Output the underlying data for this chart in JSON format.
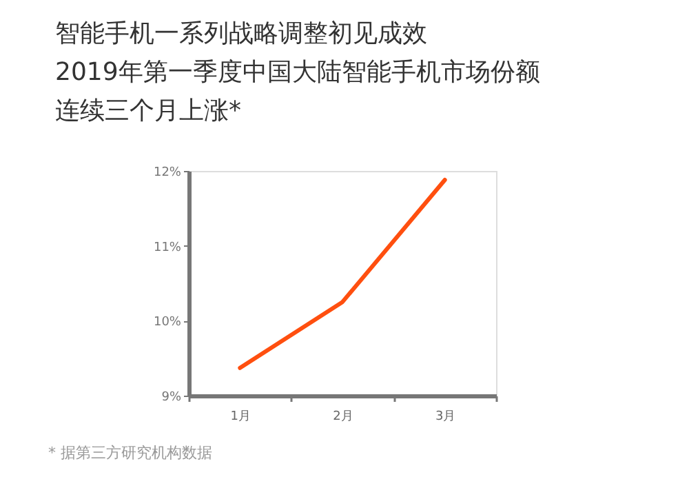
{
  "chart_data": {
    "type": "line",
    "title": "智能手机一系列战略调整初见成效",
    "subtitle": "2019年第一季度中国大陆智能手机市场份额连续三个月上涨*",
    "categories": [
      "1月",
      "2月",
      "3月"
    ],
    "series": [
      {
        "color": "#ff4f0f",
        "values": [
          9.37,
          10.25,
          11.88
        ]
      }
    ],
    "ylim": [
      9,
      12
    ],
    "yticks": [
      {
        "value": 9,
        "label": "9%"
      },
      {
        "value": 10,
        "label": "10%"
      },
      {
        "value": 11,
        "label": "11%"
      },
      {
        "value": 12,
        "label": "12%"
      }
    ],
    "grid": false,
    "marker": "none",
    "line_style": "solid",
    "annotations": [
      "* 据第三方研究机构数据"
    ]
  }
}
